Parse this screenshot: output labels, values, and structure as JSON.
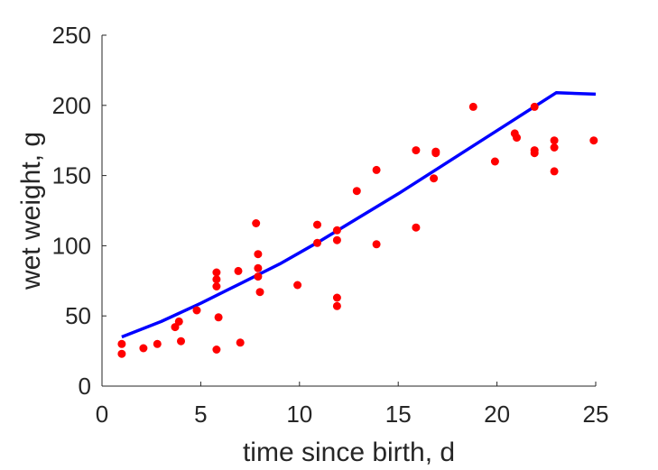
{
  "chart_data": {
    "type": "scatter",
    "title": "",
    "xlabel": "time since birth, d",
    "ylabel": "wet weight, g",
    "xlim": [
      0,
      25
    ],
    "ylim": [
      0,
      250
    ],
    "xticks": [
      "0",
      "5",
      "10",
      "15",
      "20",
      "25"
    ],
    "yticks": [
      "0",
      "50",
      "100",
      "150",
      "200",
      "250"
    ],
    "grid": false,
    "series": [
      {
        "type": "scatter",
        "color": "#ff0000",
        "x": [
          1,
          1,
          2.1,
          2.8,
          3.7,
          3.9,
          4,
          4.8,
          5.8,
          5.8,
          5.8,
          5.8,
          5.9,
          6.9,
          7,
          7.8,
          7.9,
          7.9,
          7.9,
          8,
          9.9,
          10.9,
          10.9,
          11.9,
          11.9,
          11.9,
          11.9,
          12.9,
          13.9,
          13.9,
          15.9,
          15.9,
          16.8,
          16.9,
          16.9,
          18.8,
          19.9,
          20.9,
          21,
          21.9,
          21.9,
          21.9,
          22.9,
          22.9,
          22.9,
          24.9
        ],
        "y": [
          30,
          23,
          27,
          30,
          42,
          46,
          32,
          54,
          81,
          76,
          71,
          26,
          49,
          82,
          31,
          116,
          94,
          84,
          78,
          67,
          72,
          115,
          102,
          111,
          104,
          63,
          57,
          139,
          154,
          101,
          168,
          113,
          148,
          166,
          167,
          199,
          160,
          180,
          177,
          199,
          168,
          166,
          175,
          170,
          153,
          175
        ]
      },
      {
        "type": "line",
        "color": "#0000ff",
        "x": [
          1,
          3,
          5,
          7,
          9,
          11,
          13,
          15,
          17,
          19,
          21,
          23,
          25
        ],
        "y": [
          35,
          46,
          59,
          73,
          87,
          103,
          120,
          137,
          155,
          173,
          191,
          209,
          208
        ]
      }
    ]
  }
}
